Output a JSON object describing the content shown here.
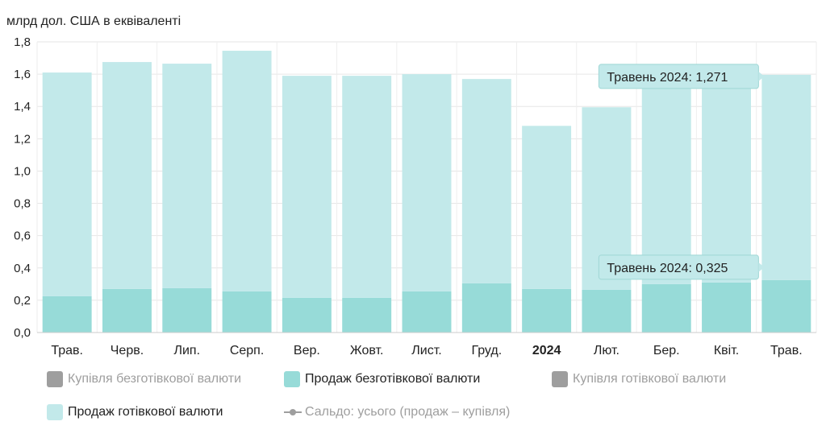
{
  "chart_data": {
    "type": "bar",
    "stacked": true,
    "ylabel": "млрд дол. США в еквіваленті",
    "ylim": [
      0,
      1.8
    ],
    "yticks": [
      "0,0",
      "0,2",
      "0,4",
      "0,6",
      "0,8",
      "1,0",
      "1,2",
      "1,4",
      "1,6",
      "1,8"
    ],
    "ytick_values": [
      0,
      0.2,
      0.4,
      0.6,
      0.8,
      1.0,
      1.2,
      1.4,
      1.6,
      1.8
    ],
    "grid": true,
    "categories": [
      "Трав.",
      "Черв.",
      "Лип.",
      "Серп.",
      "Вер.",
      "Жовт.",
      "Лист.",
      "Груд.",
      "2024",
      "Лют.",
      "Бер.",
      "Квіт.",
      "Трав."
    ],
    "bold_category": "2024",
    "series": [
      {
        "name": "Продаж безготівкової валюти",
        "color": "#97dbd8",
        "values": [
          0.225,
          0.27,
          0.275,
          0.255,
          0.215,
          0.215,
          0.255,
          0.305,
          0.27,
          0.265,
          0.3,
          0.31,
          0.325
        ]
      },
      {
        "name": "Продаж готівкової валюти",
        "color": "#c2e9ea",
        "values": [
          1.385,
          1.405,
          1.39,
          1.49,
          1.375,
          1.375,
          1.345,
          1.265,
          1.01,
          1.13,
          1.29,
          1.285,
          1.271
        ]
      }
    ],
    "tooltips": [
      {
        "label": "Травень 2024: 1,271"
      },
      {
        "label": "Травень 2024: 0,325"
      }
    ],
    "legend_position": "bottom",
    "legend": [
      {
        "name": "Купівля безготівкової валюти",
        "color": "#9e9e9e",
        "active": false,
        "kind": "box"
      },
      {
        "name": "Продаж безготівкової валюти",
        "color": "#97dbd8",
        "active": true,
        "kind": "box"
      },
      {
        "name": "Купівля готівкової валюти",
        "color": "#9e9e9e",
        "active": false,
        "kind": "box"
      },
      {
        "name": "Продаж готівкової валюти",
        "color": "#c2e9ea",
        "active": true,
        "kind": "box"
      },
      {
        "name": "Сальдо: усього (продаж – купівля)",
        "color": "#9e9e9e",
        "active": false,
        "kind": "line"
      }
    ]
  }
}
